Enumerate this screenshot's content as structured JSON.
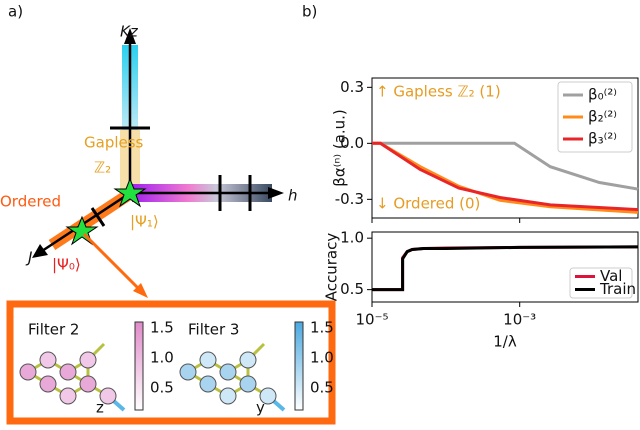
{
  "panel_a": {
    "label": "a)",
    "axes": {
      "kz": "Kz",
      "h": "h",
      "j": "J"
    },
    "phases": {
      "gapless": "Gapless",
      "z2": "ℤ₂",
      "ordered": "Ordered"
    },
    "states": [
      "|Ψ₁⟩",
      "|Ψ₀⟩"
    ],
    "filters": [
      {
        "title": "Filter 2",
        "label": "z",
        "colorbar": [
          "1.5",
          "1.0",
          "0.5"
        ]
      },
      {
        "title": "Filter 3",
        "label": "y",
        "colorbar": [
          "1.5",
          "1.0",
          "0.5"
        ]
      }
    ]
  },
  "panel_b": {
    "label": "b)"
  },
  "chart_data": [
    {
      "type": "line",
      "log_x": true,
      "ylabel": "βα⁽ⁿ⁾ (a.u.)",
      "xlim": [
        1e-05,
        0.04
      ],
      "xticks": [
        1e-05,
        0.001
      ],
      "ylim": [
        -0.4,
        0.35
      ],
      "yticks": [
        0.3,
        {
          "value": 0,
          "label": "0.0"
        },
        -0.3
      ],
      "annotations": [
        "↑ Gapless ℤ₂ (1)",
        "↓ Ordered (0)"
      ],
      "annotation_color": "#e69c24",
      "legend": "upper right",
      "series": [
        {
          "name": "β₀⁽²⁾",
          "color": "#a0a0a0",
          "x": [
            1e-05,
            0.00085,
            0.0026,
            0.012,
            0.04
          ],
          "values": [
            0,
            0,
            -0.125,
            -0.21,
            -0.245
          ]
        },
        {
          "name": "β₂⁽²⁾",
          "color": "#ff8c1a",
          "x": [
            1e-05,
            1.3e-05,
            4.5e-05,
            0.00015,
            0.00054,
            0.0026,
            0.04
          ],
          "values": [
            0,
            0,
            -0.125,
            -0.23,
            -0.305,
            -0.34,
            -0.37
          ]
        },
        {
          "name": "β₃⁽²⁾",
          "color": "#e8262a",
          "x": [
            1e-05,
            1.3e-05,
            4.5e-05,
            0.00015,
            0.00054,
            0.0026,
            0.04
          ],
          "values": [
            0,
            0,
            -0.14,
            -0.24,
            -0.29,
            -0.33,
            -0.355
          ]
        }
      ]
    },
    {
      "type": "line",
      "log_x": true,
      "ylabel": "Accuracy",
      "xlabel": "1/λ",
      "xlim": [
        1e-05,
        0.04
      ],
      "xticks": [
        {
          "value": 1e-05,
          "label": "10⁻⁵"
        },
        {
          "value": 0.001,
          "label": "10⁻³"
        }
      ],
      "ylim": [
        0.38,
        1.06
      ],
      "yticks": [
        0.5,
        {
          "value": 1,
          "label": "1.0"
        }
      ],
      "legend": "lower right",
      "series": [
        {
          "name": "Val",
          "color": "#dc143c",
          "x": [
            1e-05,
            2.6e-05,
            2.6e-05,
            3e-05,
            3.5e-05,
            5e-05,
            0.0001,
            0.001,
            0.04
          ],
          "values": [
            0.5,
            0.5,
            0.81,
            0.87,
            0.89,
            0.9,
            0.905,
            0.91,
            0.915
          ]
        },
        {
          "name": "Train",
          "color": "#000000",
          "x": [
            1e-05,
            2.6e-05,
            2.6e-05,
            3e-05,
            3.5e-05,
            5e-05,
            0.0001,
            0.001,
            0.04
          ],
          "values": [
            0.5,
            0.5,
            0.8,
            0.87,
            0.89,
            0.9,
            0.9,
            0.91,
            0.915
          ]
        }
      ]
    }
  ]
}
